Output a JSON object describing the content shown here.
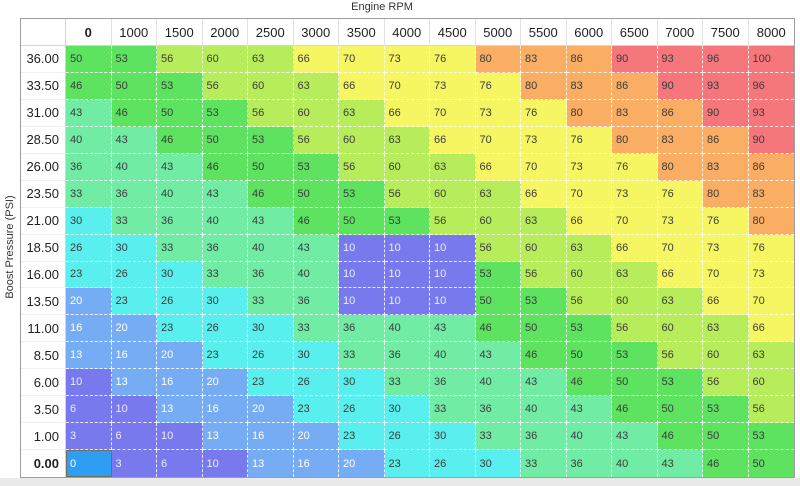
{
  "window": {
    "x_axis_title": "Engine RPM",
    "y_axis_title": "Boost Pressure (PSI)"
  },
  "table": {
    "column_headers": [
      "0",
      "1000",
      "1500",
      "2000",
      "2500",
      "3000",
      "3500",
      "4000",
      "4500",
      "5000",
      "5500",
      "6000",
      "6500",
      "7000",
      "7500",
      "8000"
    ],
    "row_headers": [
      "36.00",
      "33.50",
      "31.00",
      "28.50",
      "26.00",
      "23.50",
      "21.00",
      "18.50",
      "16.00",
      "13.50",
      "11.00",
      "8.50",
      "6.00",
      "3.50",
      "1.00",
      "0.00"
    ],
    "values": [
      [
        50,
        53,
        56,
        60,
        63,
        66,
        70,
        73,
        76,
        80,
        83,
        86,
        90,
        93,
        96,
        100
      ],
      [
        46,
        50,
        53,
        56,
        60,
        63,
        66,
        70,
        73,
        76,
        80,
        83,
        86,
        90,
        93,
        96
      ],
      [
        43,
        46,
        50,
        53,
        56,
        60,
        63,
        66,
        70,
        73,
        76,
        80,
        83,
        86,
        90,
        93
      ],
      [
        40,
        43,
        46,
        50,
        53,
        56,
        60,
        63,
        66,
        70,
        73,
        76,
        80,
        83,
        86,
        90
      ],
      [
        36,
        40,
        43,
        46,
        50,
        53,
        56,
        60,
        63,
        66,
        70,
        73,
        76,
        80,
        83,
        86
      ],
      [
        33,
        36,
        40,
        43,
        46,
        50,
        53,
        56,
        60,
        63,
        66,
        70,
        73,
        76,
        80,
        83
      ],
      [
        30,
        33,
        36,
        40,
        43,
        46,
        50,
        53,
        56,
        60,
        63,
        66,
        70,
        73,
        76,
        80
      ],
      [
        26,
        30,
        33,
        36,
        40,
        43,
        10,
        10,
        10,
        56,
        60,
        63,
        66,
        70,
        73,
        76
      ],
      [
        23,
        26,
        30,
        33,
        36,
        40,
        10,
        10,
        10,
        53,
        56,
        60,
        63,
        66,
        70,
        73
      ],
      [
        20,
        23,
        26,
        30,
        33,
        36,
        10,
        10,
        10,
        50,
        53,
        56,
        60,
        63,
        66,
        70
      ],
      [
        16,
        20,
        23,
        26,
        30,
        33,
        36,
        40,
        43,
        46,
        50,
        53,
        56,
        60,
        63,
        66
      ],
      [
        13,
        16,
        20,
        23,
        26,
        30,
        33,
        36,
        40,
        43,
        46,
        50,
        53,
        56,
        60,
        63
      ],
      [
        10,
        13,
        16,
        20,
        23,
        26,
        30,
        33,
        36,
        40,
        43,
        46,
        50,
        53,
        56,
        60
      ],
      [
        6,
        10,
        13,
        16,
        20,
        23,
        26,
        30,
        33,
        36,
        40,
        43,
        46,
        50,
        53,
        56
      ],
      [
        3,
        6,
        10,
        13,
        16,
        20,
        23,
        26,
        30,
        33,
        36,
        40,
        43,
        46,
        50,
        53
      ],
      [
        0,
        3,
        6,
        10,
        13,
        16,
        20,
        23,
        26,
        30,
        33,
        36,
        40,
        43,
        46,
        50
      ]
    ],
    "selected_cell": {
      "row_index": 15,
      "col_index": 0,
      "row_header": "0.00",
      "column_header": "0",
      "value": 0
    }
  },
  "colors": {
    "selection_border": "#6F6F5A",
    "frame_border": "#9E9E9E",
    "bins": [
      {
        "max": 0,
        "bg": "#2D9EF4",
        "fg": "#FFFFFF"
      },
      {
        "max": 10,
        "bg": "#7879EC",
        "fg": "#EDEDFF"
      },
      {
        "max": 20,
        "bg": "#76ACF3",
        "fg": "#FFFFFF"
      },
      {
        "max": 30,
        "bg": "#59EFEE",
        "fg": "#3C3C3C"
      },
      {
        "max": 43,
        "bg": "#70ECA4",
        "fg": "#3C3C3C"
      },
      {
        "max": 53,
        "bg": "#5DE360",
        "fg": "#3C3C3C"
      },
      {
        "max": 63,
        "bg": "#B7ED5A",
        "fg": "#3C3C3C"
      },
      {
        "max": 76,
        "bg": "#F6F562",
        "fg": "#3C3C3C"
      },
      {
        "max": 86,
        "bg": "#FAAE63",
        "fg": "#3C3C3C"
      },
      {
        "max": 100,
        "bg": "#F5767B",
        "fg": "#3C3C3C"
      }
    ]
  },
  "chart_data": {
    "type": "heatmap",
    "title": "Engine RPM",
    "xlabel": "Engine RPM",
    "ylabel": "Boost Pressure (PSI)",
    "x": [
      "0",
      "1000",
      "1500",
      "2000",
      "2500",
      "3000",
      "3500",
      "4000",
      "4500",
      "5000",
      "5500",
      "6000",
      "6500",
      "7000",
      "7500",
      "8000"
    ],
    "y": [
      "36.00",
      "33.50",
      "31.00",
      "28.50",
      "26.00",
      "23.50",
      "21.00",
      "18.50",
      "16.00",
      "13.50",
      "11.00",
      "8.50",
      "6.00",
      "3.50",
      "1.00",
      "0.00"
    ],
    "values": [
      [
        50,
        53,
        56,
        60,
        63,
        66,
        70,
        73,
        76,
        80,
        83,
        86,
        90,
        93,
        96,
        100
      ],
      [
        46,
        50,
        53,
        56,
        60,
        63,
        66,
        70,
        73,
        76,
        80,
        83,
        86,
        90,
        93,
        96
      ],
      [
        43,
        46,
        50,
        53,
        56,
        60,
        63,
        66,
        70,
        73,
        76,
        80,
        83,
        86,
        90,
        93
      ],
      [
        40,
        43,
        46,
        50,
        53,
        56,
        60,
        63,
        66,
        70,
        73,
        76,
        80,
        83,
        86,
        90
      ],
      [
        36,
        40,
        43,
        46,
        50,
        53,
        56,
        60,
        63,
        66,
        70,
        73,
        76,
        80,
        83,
        86
      ],
      [
        33,
        36,
        40,
        43,
        46,
        50,
        53,
        56,
        60,
        63,
        66,
        70,
        73,
        76,
        80,
        83
      ],
      [
        30,
        33,
        36,
        40,
        43,
        46,
        50,
        53,
        56,
        60,
        63,
        66,
        70,
        73,
        76,
        80
      ],
      [
        26,
        30,
        33,
        36,
        40,
        43,
        10,
        10,
        10,
        56,
        60,
        63,
        66,
        70,
        73,
        76
      ],
      [
        23,
        26,
        30,
        33,
        36,
        40,
        10,
        10,
        10,
        53,
        56,
        60,
        63,
        66,
        70,
        73
      ],
      [
        20,
        23,
        26,
        30,
        33,
        36,
        10,
        10,
        10,
        50,
        53,
        56,
        60,
        63,
        66,
        70
      ],
      [
        16,
        20,
        23,
        26,
        30,
        33,
        36,
        40,
        43,
        46,
        50,
        53,
        56,
        60,
        63,
        66
      ],
      [
        13,
        16,
        20,
        23,
        26,
        30,
        33,
        36,
        40,
        43,
        46,
        50,
        53,
        56,
        60,
        63
      ],
      [
        10,
        13,
        16,
        20,
        23,
        26,
        30,
        33,
        36,
        40,
        43,
        46,
        50,
        53,
        56,
        60
      ],
      [
        6,
        10,
        13,
        16,
        20,
        23,
        26,
        30,
        33,
        36,
        40,
        43,
        46,
        50,
        53,
        56
      ],
      [
        3,
        6,
        10,
        13,
        16,
        20,
        23,
        26,
        30,
        33,
        36,
        40,
        43,
        46,
        50,
        53
      ],
      [
        0,
        3,
        6,
        10,
        13,
        16,
        20,
        23,
        26,
        30,
        33,
        36,
        40,
        43,
        46,
        50
      ]
    ],
    "legend_position": "none",
    "grid": "dashed-white"
  }
}
